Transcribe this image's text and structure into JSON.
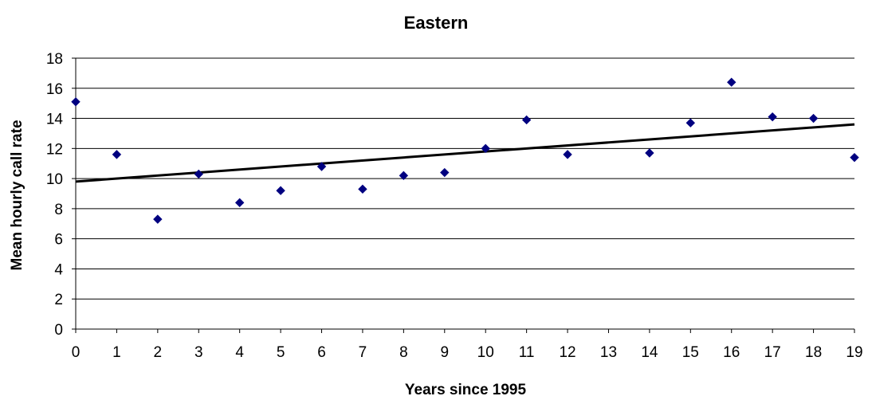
{
  "chart_data": {
    "type": "scatter",
    "title": "Eastern",
    "xlabel": "Years since 1995",
    "ylabel": "Mean hourly call rate",
    "xlim": [
      0,
      19
    ],
    "ylim": [
      0,
      18
    ],
    "xticks": [
      0,
      1,
      2,
      3,
      4,
      5,
      6,
      7,
      8,
      9,
      10,
      11,
      12,
      13,
      14,
      15,
      16,
      17,
      18,
      19
    ],
    "yticks": [
      0,
      2,
      4,
      6,
      8,
      10,
      12,
      14,
      16,
      18
    ],
    "grid": "horizontal",
    "legend": "none",
    "series": [
      {
        "marker": "diamond",
        "color": "#000080",
        "points": [
          {
            "x": 0,
            "y": 15.1
          },
          {
            "x": 1,
            "y": 11.6
          },
          {
            "x": 2,
            "y": 7.3
          },
          {
            "x": 3,
            "y": 10.3
          },
          {
            "x": 4,
            "y": 8.4
          },
          {
            "x": 5,
            "y": 9.2
          },
          {
            "x": 6,
            "y": 10.8
          },
          {
            "x": 7,
            "y": 9.3
          },
          {
            "x": 8,
            "y": 10.2
          },
          {
            "x": 9,
            "y": 10.4
          },
          {
            "x": 10,
            "y": 12.0
          },
          {
            "x": 11,
            "y": 13.9
          },
          {
            "x": 12,
            "y": 11.6
          },
          {
            "x": 14,
            "y": 11.7
          },
          {
            "x": 15,
            "y": 13.7
          },
          {
            "x": 16,
            "y": 16.4
          },
          {
            "x": 17,
            "y": 14.1
          },
          {
            "x": 18,
            "y": 14.0
          },
          {
            "x": 19,
            "y": 11.4
          }
        ]
      }
    ],
    "trendline": {
      "type": "linear",
      "color": "#000000",
      "points": [
        {
          "x": 0,
          "y": 9.8
        },
        {
          "x": 19,
          "y": 13.6
        }
      ]
    }
  }
}
